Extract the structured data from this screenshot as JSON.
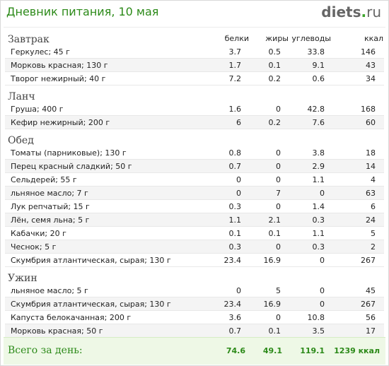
{
  "header": {
    "title": "Дневник питания, 10 мая",
    "logo_name": "diets",
    "logo_dot": ".",
    "logo_tld": "ru"
  },
  "columns": {
    "proteins": "белки",
    "fats": "жиры",
    "carbs": "углеводы",
    "kcal": "ккал"
  },
  "meals": [
    {
      "name": "Завтрак",
      "items": [
        {
          "name": "Геркулес; 45 г",
          "p": "3.7",
          "f": "0.5",
          "c": "33.8",
          "k": "146"
        },
        {
          "name": "Морковь красная; 130 г",
          "p": "1.7",
          "f": "0.1",
          "c": "9.1",
          "k": "43"
        },
        {
          "name": "Творог нежирный; 40 г",
          "p": "7.2",
          "f": "0.2",
          "c": "0.6",
          "k": "34"
        }
      ]
    },
    {
      "name": "Ланч",
      "items": [
        {
          "name": "Груша; 400 г",
          "p": "1.6",
          "f": "0",
          "c": "42.8",
          "k": "168"
        },
        {
          "name": "Кефир нежирный; 200 г",
          "p": "6",
          "f": "0.2",
          "c": "7.6",
          "k": "60"
        }
      ]
    },
    {
      "name": "Обед",
      "items": [
        {
          "name": "Томаты (парниковые); 130 г",
          "p": "0.8",
          "f": "0",
          "c": "3.8",
          "k": "18"
        },
        {
          "name": "Перец красный сладкий; 50 г",
          "p": "0.7",
          "f": "0",
          "c": "2.9",
          "k": "14"
        },
        {
          "name": "Сельдерей; 55 г",
          "p": "0",
          "f": "0",
          "c": "1.1",
          "k": "4"
        },
        {
          "name": "льняное масло; 7 г",
          "p": "0",
          "f": "7",
          "c": "0",
          "k": "63"
        },
        {
          "name": "Лук репчатый; 15 г",
          "p": "0.3",
          "f": "0",
          "c": "1.4",
          "k": "6"
        },
        {
          "name": "Лён, семя льна; 5 г",
          "p": "1.1",
          "f": "2.1",
          "c": "0.3",
          "k": "24"
        },
        {
          "name": "Кабачки; 20 г",
          "p": "0.1",
          "f": "0.1",
          "c": "1.1",
          "k": "5"
        },
        {
          "name": "Чеснок; 5 г",
          "p": "0.3",
          "f": "0",
          "c": "0.3",
          "k": "2"
        },
        {
          "name": "Скумбрия атлантическая, сырая; 130 г",
          "p": "23.4",
          "f": "16.9",
          "c": "0",
          "k": "267"
        }
      ]
    },
    {
      "name": "Ужин",
      "items": [
        {
          "name": "льняное масло; 5 г",
          "p": "0",
          "f": "5",
          "c": "0",
          "k": "45"
        },
        {
          "name": "Скумбрия атлантическая, сырая; 130 г",
          "p": "23.4",
          "f": "16.9",
          "c": "0",
          "k": "267"
        },
        {
          "name": "Капуста белокачанная; 200 г",
          "p": "3.6",
          "f": "0",
          "c": "10.8",
          "k": "56"
        },
        {
          "name": "Морковь красная; 50 г",
          "p": "0.7",
          "f": "0.1",
          "c": "3.5",
          "k": "17"
        }
      ]
    }
  ],
  "totals": {
    "label": "Всего за день:",
    "p": "74.6",
    "f": "49.1",
    "c": "119.1",
    "k": "1239 ккал"
  }
}
